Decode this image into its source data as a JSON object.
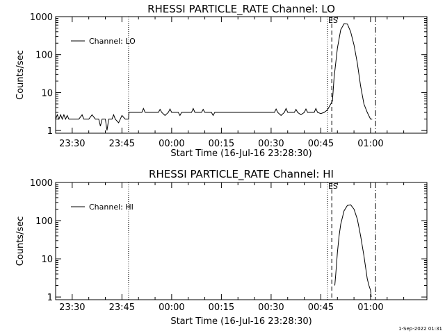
{
  "footer_timestamp": "1-Sep-2022 01:31",
  "chart_data": [
    {
      "type": "line",
      "title": "RHESSI PARTICLE_RATE Channel: LO",
      "xlabel": "Start Time (16-Jul-16 23:28:30)",
      "ylabel": "Counts/sec",
      "yscale": "log",
      "ylim": [
        0.85,
        1000
      ],
      "xlim": [
        -5.0,
        107.0
      ],
      "x_unit": "minutes since 23:30",
      "x_ticks": [
        0,
        15,
        30,
        45,
        60,
        75,
        90
      ],
      "x_tick_labels": [
        "23:30",
        "23:45",
        "00:00",
        "00:15",
        "00:30",
        "00:45",
        "01:00"
      ],
      "y_ticks": [
        1,
        10,
        100,
        1000
      ],
      "y_tick_labels": [
        "1",
        "10",
        "100",
        "1000"
      ],
      "legend": {
        "label": "Channel: LO",
        "placement": "top-left"
      },
      "annotation": "ES",
      "marker_lines": [
        {
          "x": 17.0,
          "style": "dotted"
        },
        {
          "x": 77.0,
          "style": "dotted"
        },
        {
          "x": 78.3,
          "style": "dashed"
        },
        {
          "x": 91.5,
          "style": "dashdot"
        }
      ],
      "series": [
        {
          "name": "Channel: LO",
          "x": [
            -5.0,
            -4.5,
            -4.0,
            -3.5,
            -3.0,
            -2.5,
            -2.0,
            -1.5,
            -1.0,
            -0.5,
            0.0,
            1.0,
            2.0,
            3.0,
            3.5,
            4.0,
            5.0,
            6.0,
            7.0,
            8.0,
            8.5,
            9.0,
            10.0,
            10.5,
            11.0,
            12.0,
            12.5,
            13.0,
            14.0,
            14.5,
            15.0,
            16.0,
            17.0,
            17.1,
            20.0,
            21.0,
            21.5,
            22.0,
            25.0,
            26.0,
            26.5,
            27.0,
            28.0,
            29.0,
            29.5,
            30.0,
            31.0,
            32.0,
            32.5,
            33.0,
            35.0,
            36.0,
            36.5,
            37.0,
            38.0,
            39.0,
            39.5,
            40.0,
            41.0,
            42.0,
            42.5,
            43.0,
            45.0,
            48.0,
            50.0,
            52.0,
            54.0,
            57.0,
            60.0,
            61.0,
            61.5,
            62.0,
            63.0,
            64.0,
            64.5,
            65.0,
            66.0,
            67.0,
            67.5,
            68.0,
            69.0,
            70.0,
            70.5,
            71.0,
            72.0,
            73.0,
            73.5,
            74.0,
            75.0,
            76.0,
            77.0,
            78.0,
            78.5,
            79.0,
            80.0,
            81.0,
            82.0,
            83.0,
            84.0,
            85.0,
            86.0,
            87.0,
            88.0,
            89.0,
            90.0,
            90.5
          ],
          "y": [
            2,
            2.6,
            2,
            2.6,
            2,
            2.6,
            2,
            2.5,
            2,
            2,
            2,
            2,
            2,
            2.6,
            2,
            2,
            2,
            2.6,
            2,
            2,
            1.3,
            2,
            2,
            1.0,
            2,
            2,
            2.6,
            2,
            1.6,
            2,
            2.5,
            2,
            2,
            3,
            3,
            3,
            3.8,
            3,
            3,
            3,
            3.6,
            3,
            2.5,
            3,
            3.7,
            3,
            3,
            3,
            2.5,
            3,
            3,
            3,
            3.8,
            3,
            3,
            3,
            3.6,
            3,
            3,
            3,
            2.5,
            3,
            3,
            3,
            3,
            3,
            3,
            3,
            3,
            3,
            3.7,
            3,
            2.5,
            3,
            3.8,
            3,
            3,
            3,
            3.6,
            3,
            2.6,
            3,
            3.7,
            3,
            3,
            3,
            3.8,
            3,
            2.8,
            3,
            3.5,
            5,
            6,
            25,
            150,
            450,
            650,
            640,
            400,
            180,
            60,
            15,
            5,
            3,
            2,
            2
          ]
        }
      ]
    },
    {
      "type": "line",
      "title": "RHESSI PARTICLE_RATE Channel: HI",
      "xlabel": "Start Time (16-Jul-16 23:28:30)",
      "ylabel": "Counts/sec",
      "yscale": "log",
      "ylim": [
        0.85,
        1000
      ],
      "xlim": [
        -5.0,
        107.0
      ],
      "x_unit": "minutes since 23:30",
      "x_ticks": [
        0,
        15,
        30,
        45,
        60,
        75,
        90
      ],
      "x_tick_labels": [
        "23:30",
        "23:45",
        "00:00",
        "00:15",
        "00:30",
        "00:45",
        "01:00"
      ],
      "y_ticks": [
        1,
        10,
        100,
        1000
      ],
      "y_tick_labels": [
        "1",
        "10",
        "100",
        "1000"
      ],
      "legend": {
        "label": "Channel: HI",
        "placement": "top-left"
      },
      "annotation": "ES",
      "marker_lines": [
        {
          "x": 17.0,
          "style": "dotted"
        },
        {
          "x": 77.0,
          "style": "dotted"
        },
        {
          "x": 78.3,
          "style": "dashed"
        },
        {
          "x": 91.5,
          "style": "dashdot"
        }
      ],
      "series": [
        {
          "name": "Channel: HI",
          "x": [
            79.2,
            79.5,
            80.0,
            80.5,
            81.0,
            82.0,
            83.0,
            84.0,
            85.0,
            86.0,
            87.0,
            88.0,
            89.0,
            89.5,
            90.0,
            90.2
          ],
          "y": [
            2,
            4,
            15,
            40,
            80,
            180,
            250,
            260,
            200,
            110,
            40,
            12,
            3,
            2,
            1.5,
            1
          ]
        }
      ]
    }
  ]
}
